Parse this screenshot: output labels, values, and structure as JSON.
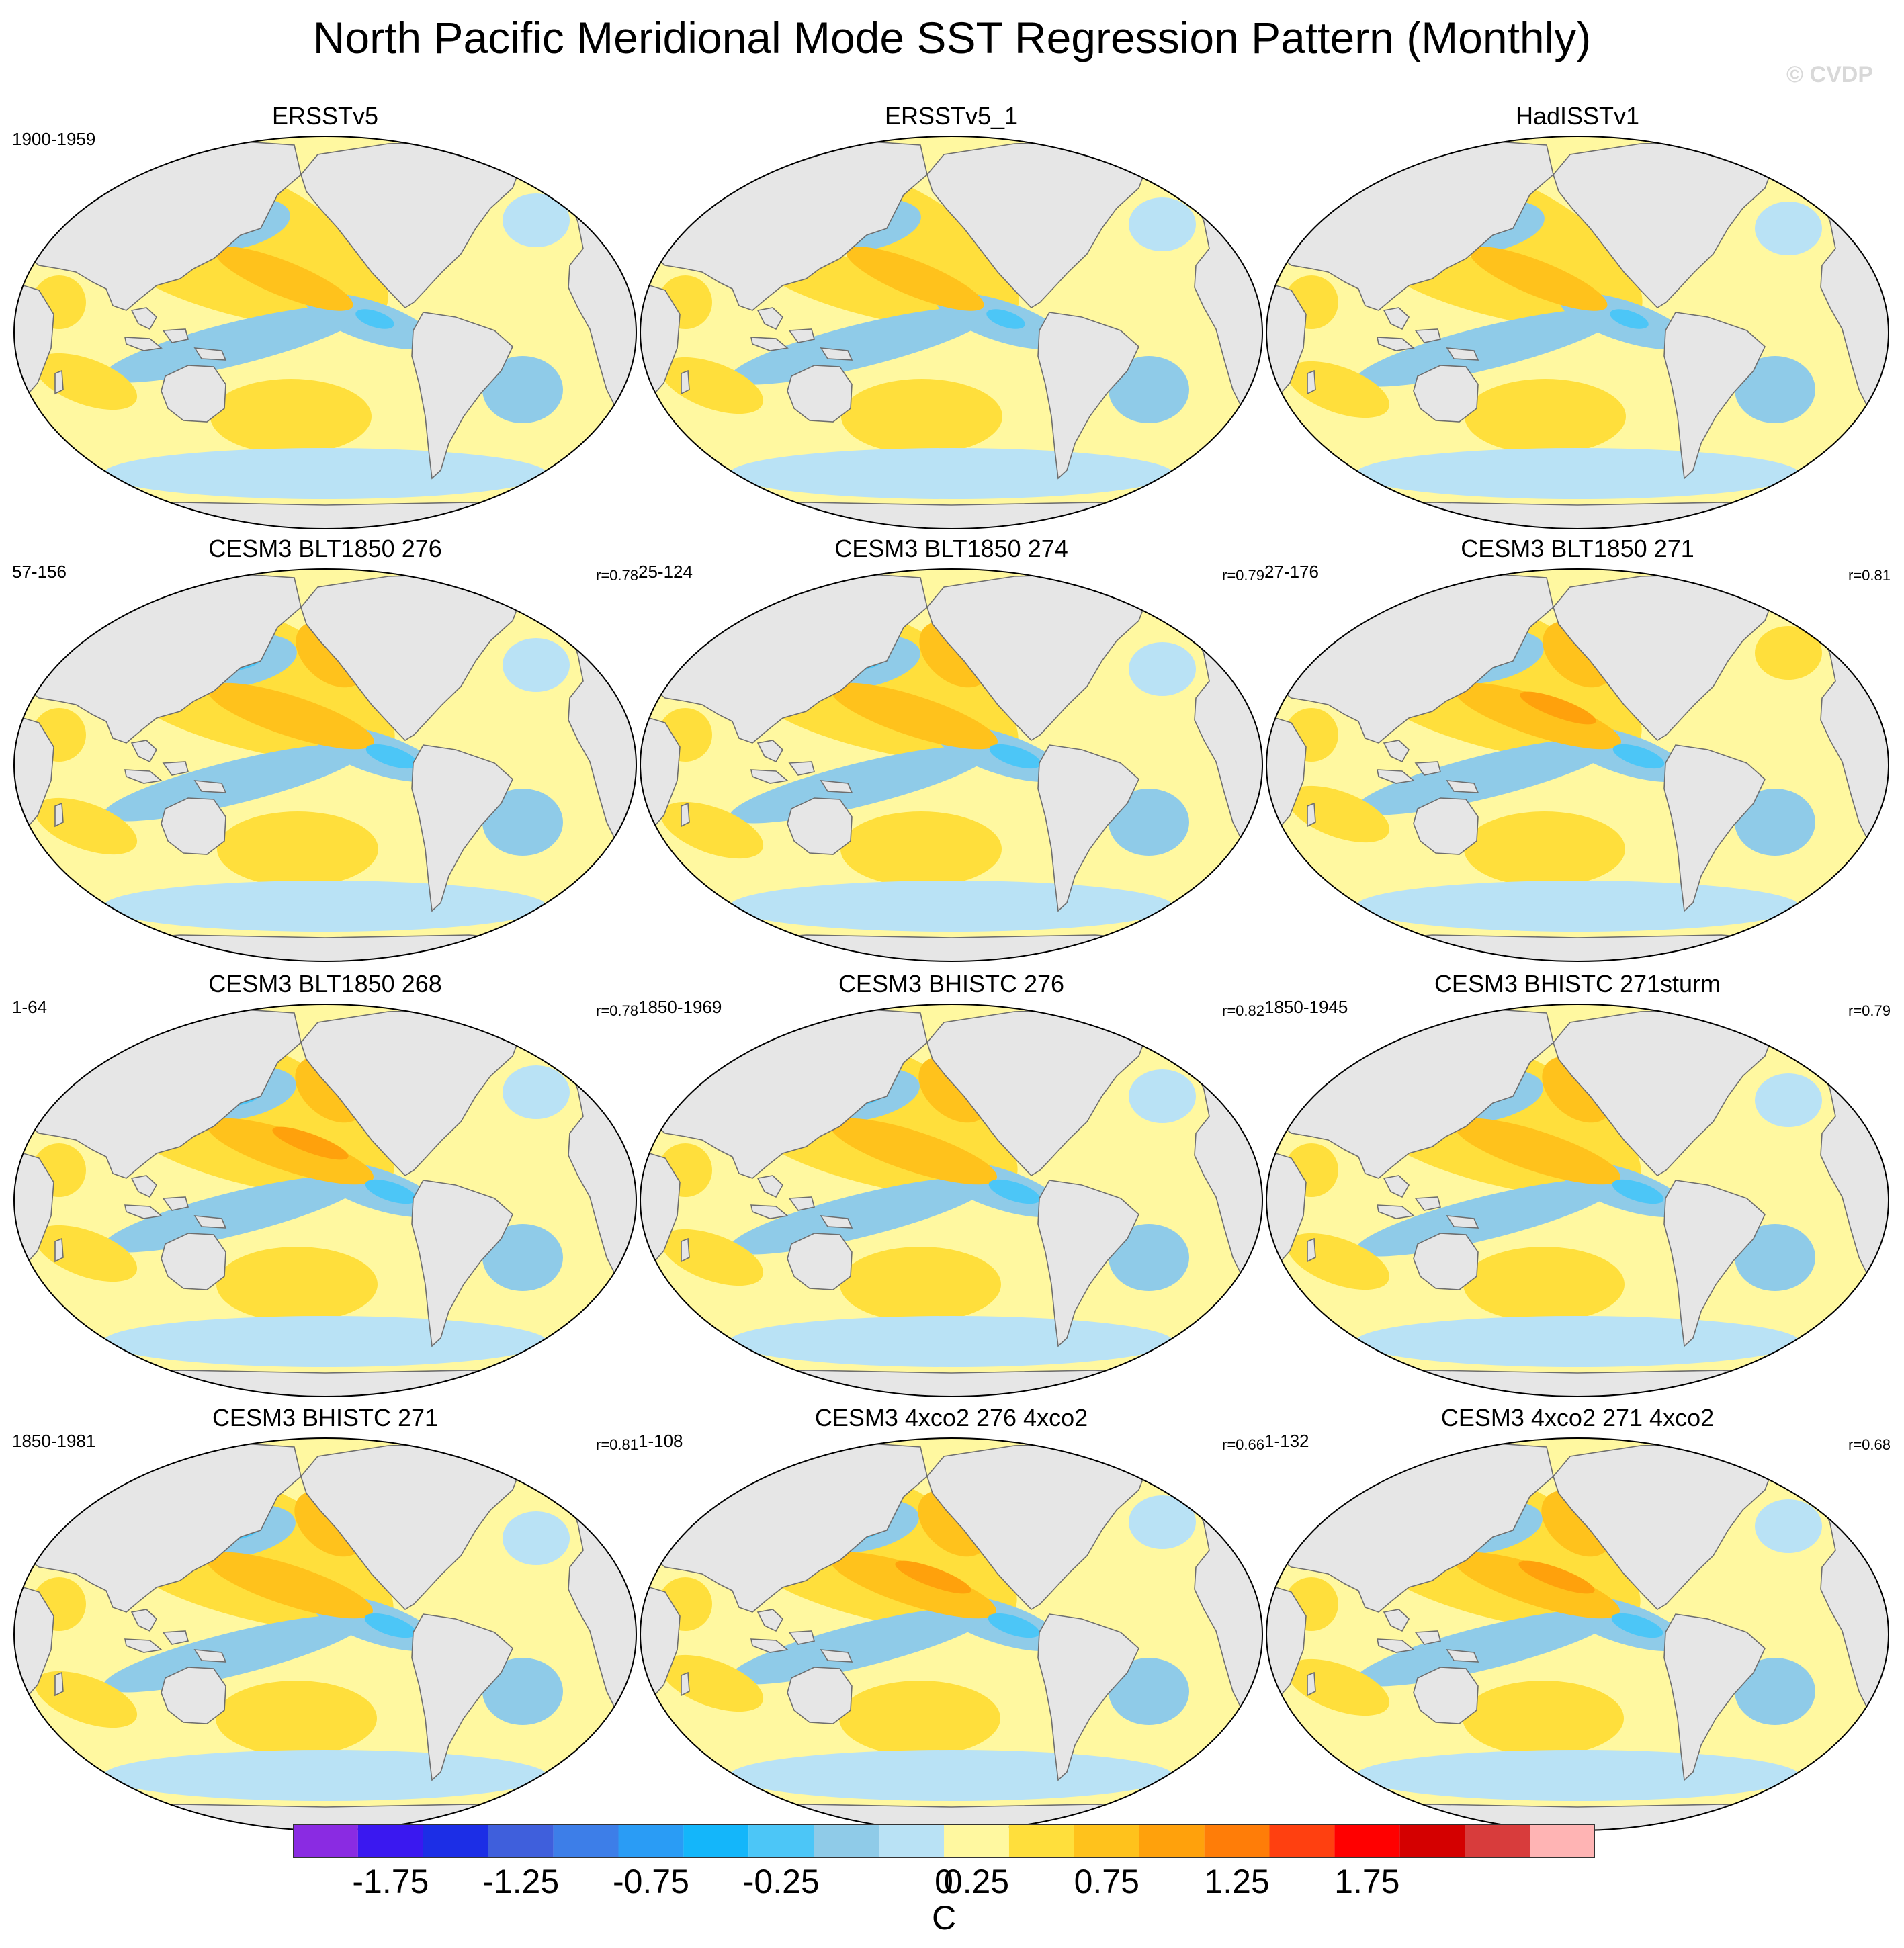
{
  "title": "North Pacific Meridional Mode SST Regression Pattern (Monthly)",
  "credit": "© CVDP",
  "panels": [
    {
      "title": "ERSSTv5",
      "period": "1900-1959",
      "r": "",
      "var": 0
    },
    {
      "title": "ERSSTv5_1",
      "period": "",
      "r": "",
      "var": 1
    },
    {
      "title": "HadISSTv1",
      "period": "",
      "r": "",
      "var": 2
    },
    {
      "title": "CESM3 BLT1850 276",
      "period": "57-156",
      "r": "r=0.78",
      "var": 3
    },
    {
      "title": "CESM3 BLT1850 274",
      "period": "25-124",
      "r": "r=0.79",
      "var": 4
    },
    {
      "title": "CESM3 BLT1850 271",
      "period": "27-176",
      "r": "r=0.81",
      "var": 5
    },
    {
      "title": "CESM3 BLT1850 268",
      "period": "1-64",
      "r": "r=0.78",
      "var": 6
    },
    {
      "title": "CESM3 BHISTC 276",
      "period": "1850-1969",
      "r": "r=0.82",
      "var": 7
    },
    {
      "title": "CESM3 BHISTC 271sturm",
      "period": "1850-1945",
      "r": "r=0.79",
      "var": 8
    },
    {
      "title": "CESM3 BHISTC 271",
      "period": "1850-1981",
      "r": "r=0.81",
      "var": 9
    },
    {
      "title": "CESM3 4xco2 276 4xco2",
      "period": "1-108",
      "r": "r=0.66",
      "var": 10
    },
    {
      "title": "CESM3 4xco2 271 4xco2",
      "period": "1-132",
      "r": "r=0.68",
      "var": 11
    }
  ],
  "colorbar": {
    "unit": "C",
    "labels": [
      "-1.75",
      "-1.25",
      "-0.75",
      "-0.25",
      "0",
      "0.25",
      "0.75",
      "1.25",
      "1.75"
    ],
    "colors": [
      "#8a2be2",
      "#3a18f0",
      "#1c2ee6",
      "#3f5fdc",
      "#3d7ee8",
      "#2a9cf5",
      "#14b6fa",
      "#4cc6f7",
      "#8fcbe8",
      "#b9e2f5",
      "#fff8a0",
      "#ffdf3c",
      "#ffc21c",
      "#ffa10c",
      "#ff7d08",
      "#ff4010",
      "#ff0000",
      "#d40000",
      "#d83c3c",
      "#ffb4b4"
    ]
  },
  "map_colors": {
    "ocean_weak_negative": "#b9e2f5",
    "ocean_negative": "#8fcbe8",
    "ocean_strong_negative": "#4cc6f7",
    "ocean_weak_positive": "#fff8a0",
    "ocean_positive": "#ffdf3c",
    "ocean_strong_positive": "#ffc21c",
    "ocean_max_positive": "#ffa10c",
    "land": "#e6e6e6"
  }
}
